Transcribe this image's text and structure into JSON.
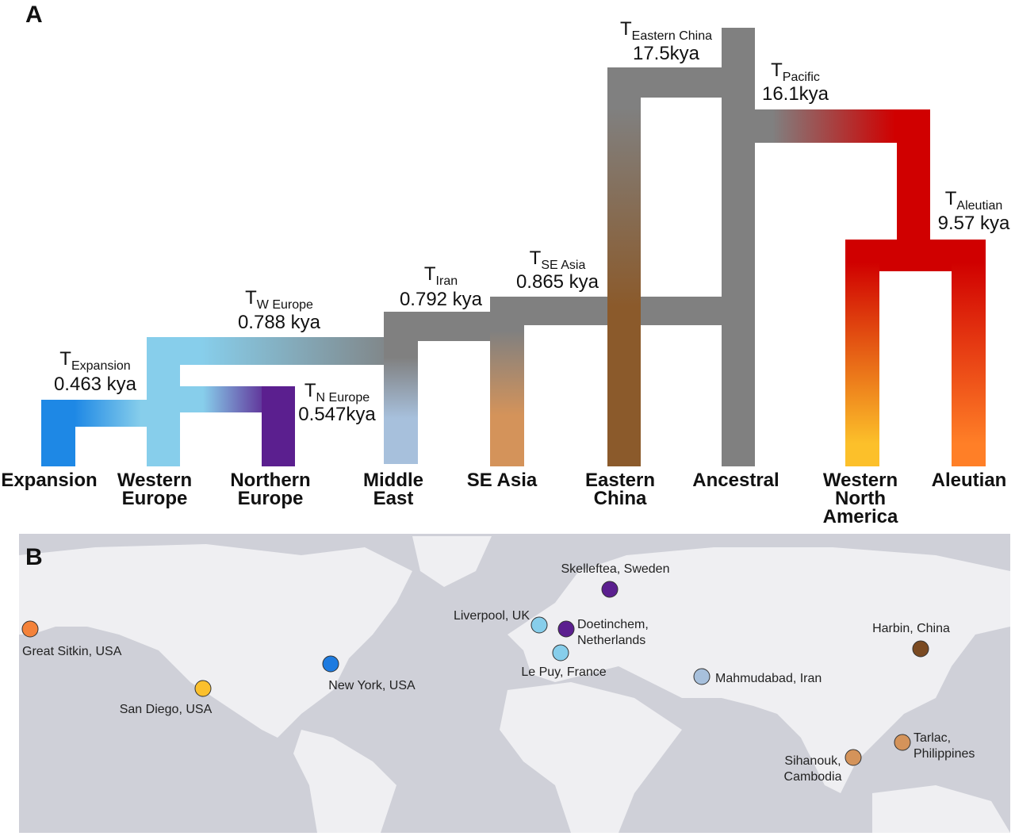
{
  "panel_a": {
    "label": "A",
    "tips": [
      {
        "lines": [
          "Expansion"
        ]
      },
      {
        "lines": [
          "Western",
          "Europe"
        ]
      },
      {
        "lines": [
          "Northern",
          "Europe"
        ]
      },
      {
        "lines": [
          "Middle",
          "East"
        ]
      },
      {
        "lines": [
          "SE Asia"
        ]
      },
      {
        "lines": [
          "Eastern",
          "China"
        ]
      },
      {
        "lines": [
          "Ancestral"
        ]
      },
      {
        "lines": [
          "Western",
          "North",
          "America"
        ]
      },
      {
        "lines": [
          "Aleutian"
        ]
      }
    ],
    "splits": [
      {
        "symbol": "T",
        "subscript": "Expansion",
        "time": "0.463 kya"
      },
      {
        "symbol": "T",
        "subscript": "W Europe",
        "time": "0.788 kya"
      },
      {
        "symbol": "T",
        "subscript": "N Europe",
        "time": "0.547kya"
      },
      {
        "symbol": "T",
        "subscript": "Iran",
        "time": "0.792 kya"
      },
      {
        "symbol": "T",
        "subscript": "SE Asia",
        "time": "0.865 kya"
      },
      {
        "symbol": "T",
        "subscript": "Eastern China",
        "time": "17.5kya"
      },
      {
        "symbol": "T",
        "subscript": "Pacific",
        "time": "16.1kya"
      },
      {
        "symbol": "T",
        "subscript": "Aleutian",
        "time": "9.57 kya"
      }
    ]
  },
  "panel_b": {
    "label": "B",
    "locations": [
      {
        "lines": [
          "Great Sitkin, USA"
        ],
        "color": "#f4823a"
      },
      {
        "lines": [
          "San Diego, USA"
        ],
        "color": "#fbc02d"
      },
      {
        "lines": [
          "New York, USA"
        ],
        "color": "#1e7be0"
      },
      {
        "lines": [
          "Liverpool, UK"
        ],
        "color": "#87ceeb"
      },
      {
        "lines": [
          "Doetinchem,",
          "Netherlands"
        ],
        "color": "#5b1f8f"
      },
      {
        "lines": [
          "Le Puy, France"
        ],
        "color": "#87ceeb"
      },
      {
        "lines": [
          "Skelleftea, Sweden"
        ],
        "color": "#5b1f8f"
      },
      {
        "lines": [
          "Mahmudabad, Iran"
        ],
        "color": "#a7c0dc"
      },
      {
        "lines": [
          "Harbin, China"
        ],
        "color": "#7a4a22"
      },
      {
        "lines": [
          "Sihanouk,",
          "Cambodia"
        ],
        "color": "#d4935a"
      },
      {
        "lines": [
          "Tarlac,",
          "Philippines"
        ],
        "color": "#d4935a"
      }
    ]
  }
}
